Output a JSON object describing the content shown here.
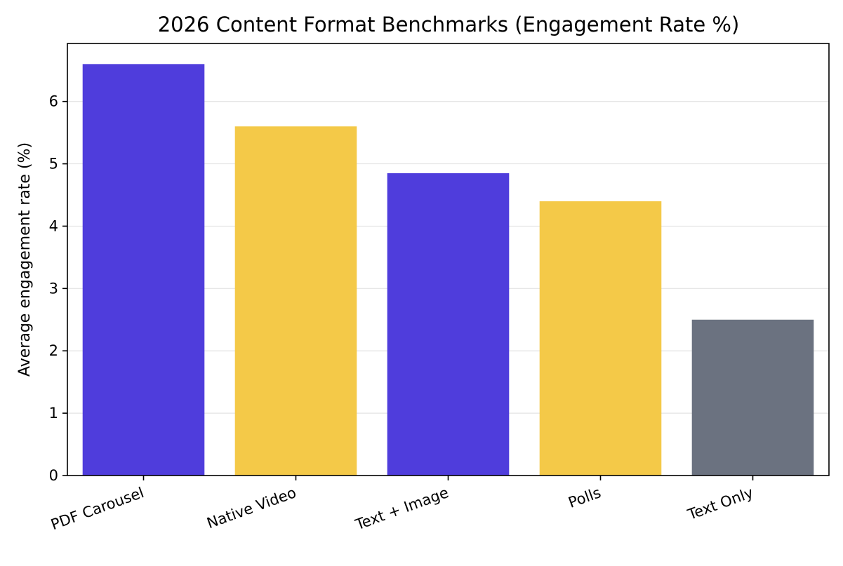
{
  "chart_data": {
    "type": "bar",
    "title": "2026 Content Format Benchmarks (Engagement Rate %)",
    "xlabel": "",
    "ylabel": "Average engagement rate (%)",
    "categories": [
      "PDF Carousel",
      "Native Video",
      "Text + Image",
      "Polls",
      "Text Only"
    ],
    "values": [
      6.6,
      5.6,
      4.85,
      4.4,
      2.5
    ],
    "colors": [
      "#4f3ddc",
      "#f4c948",
      "#4f3ddc",
      "#f4c948",
      "#6b7280"
    ],
    "ylim": [
      0,
      6.93
    ],
    "yticks": [
      0,
      1,
      2,
      3,
      4,
      5,
      6
    ],
    "grid": "y-only",
    "legend": "none"
  }
}
